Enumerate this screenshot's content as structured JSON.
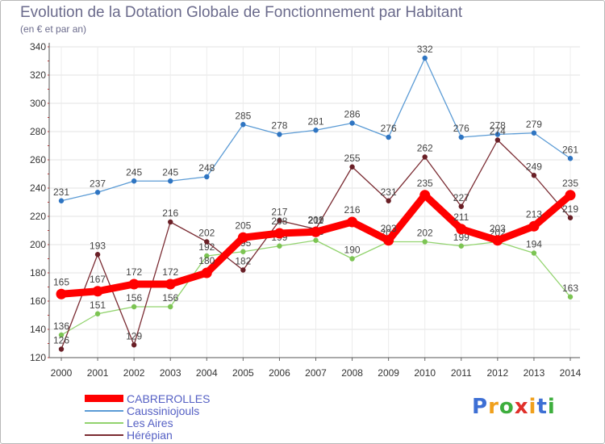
{
  "header": {
    "title": "Evolution de la Dotation Globale de Fonctionnement par Habitant",
    "subtitle": "(en € et par an)"
  },
  "logo": {
    "letters": [
      "P",
      "r",
      "o",
      "x",
      "i",
      "t",
      "i"
    ],
    "letter_colors": [
      "#3d6fd4",
      "#f0a01c",
      "#3dae3d",
      "#e0302a",
      "#f0a01c",
      "#3d6fd4",
      "#3dae3d"
    ]
  },
  "chart_data": {
    "type": "line",
    "title": "Evolution de la Dotation Globale de Fonctionnement par Habitant",
    "subtitle": "(en € et par an)",
    "xlabel": "",
    "ylabel": "",
    "ylim": [
      120,
      340
    ],
    "yticks": [
      120,
      140,
      160,
      180,
      200,
      220,
      240,
      260,
      280,
      300,
      320,
      340
    ],
    "grid": true,
    "legend_position": "bottom-left",
    "categories": [
      "2000",
      "2001",
      "2002",
      "2003",
      "2004",
      "2005",
      "2006",
      "2007",
      "2008",
      "2009",
      "2010",
      "2011",
      "2012",
      "2013",
      "2014"
    ],
    "series": [
      {
        "name": "Caussiniojouls",
        "color": "#5b9bd5",
        "point_color": "#2f75c2",
        "emphasis": false,
        "values": [
          231,
          237,
          245,
          245,
          248,
          285,
          278,
          281,
          286,
          276,
          332,
          276,
          278,
          279,
          261
        ]
      },
      {
        "name": "Les Aires",
        "color": "#92d36e",
        "point_color": "#7cc453",
        "emphasis": false,
        "values": [
          136,
          151,
          156,
          156,
          192,
          195,
          199,
          203,
          190,
          202,
          202,
          199,
          202,
          194,
          163
        ]
      },
      {
        "name": "Hérépian",
        "color": "#7a2b32",
        "point_color": "#6a1f26",
        "emphasis": false,
        "values": [
          126,
          193,
          129,
          216,
          202,
          182,
          217,
          211,
          255,
          231,
          262,
          227,
          274,
          249,
          219
        ]
      },
      {
        "name": "CABREROLLES",
        "color": "#ff0000",
        "point_color": "#ff0000",
        "emphasis": true,
        "values": [
          165,
          167,
          172,
          172,
          180,
          205,
          208,
          209,
          216,
          203,
          235,
          211,
          203,
          213,
          235
        ]
      }
    ],
    "legend_order": [
      "CABREROLLES",
      "Caussiniojouls",
      "Les Aires",
      "Hérépian"
    ]
  }
}
